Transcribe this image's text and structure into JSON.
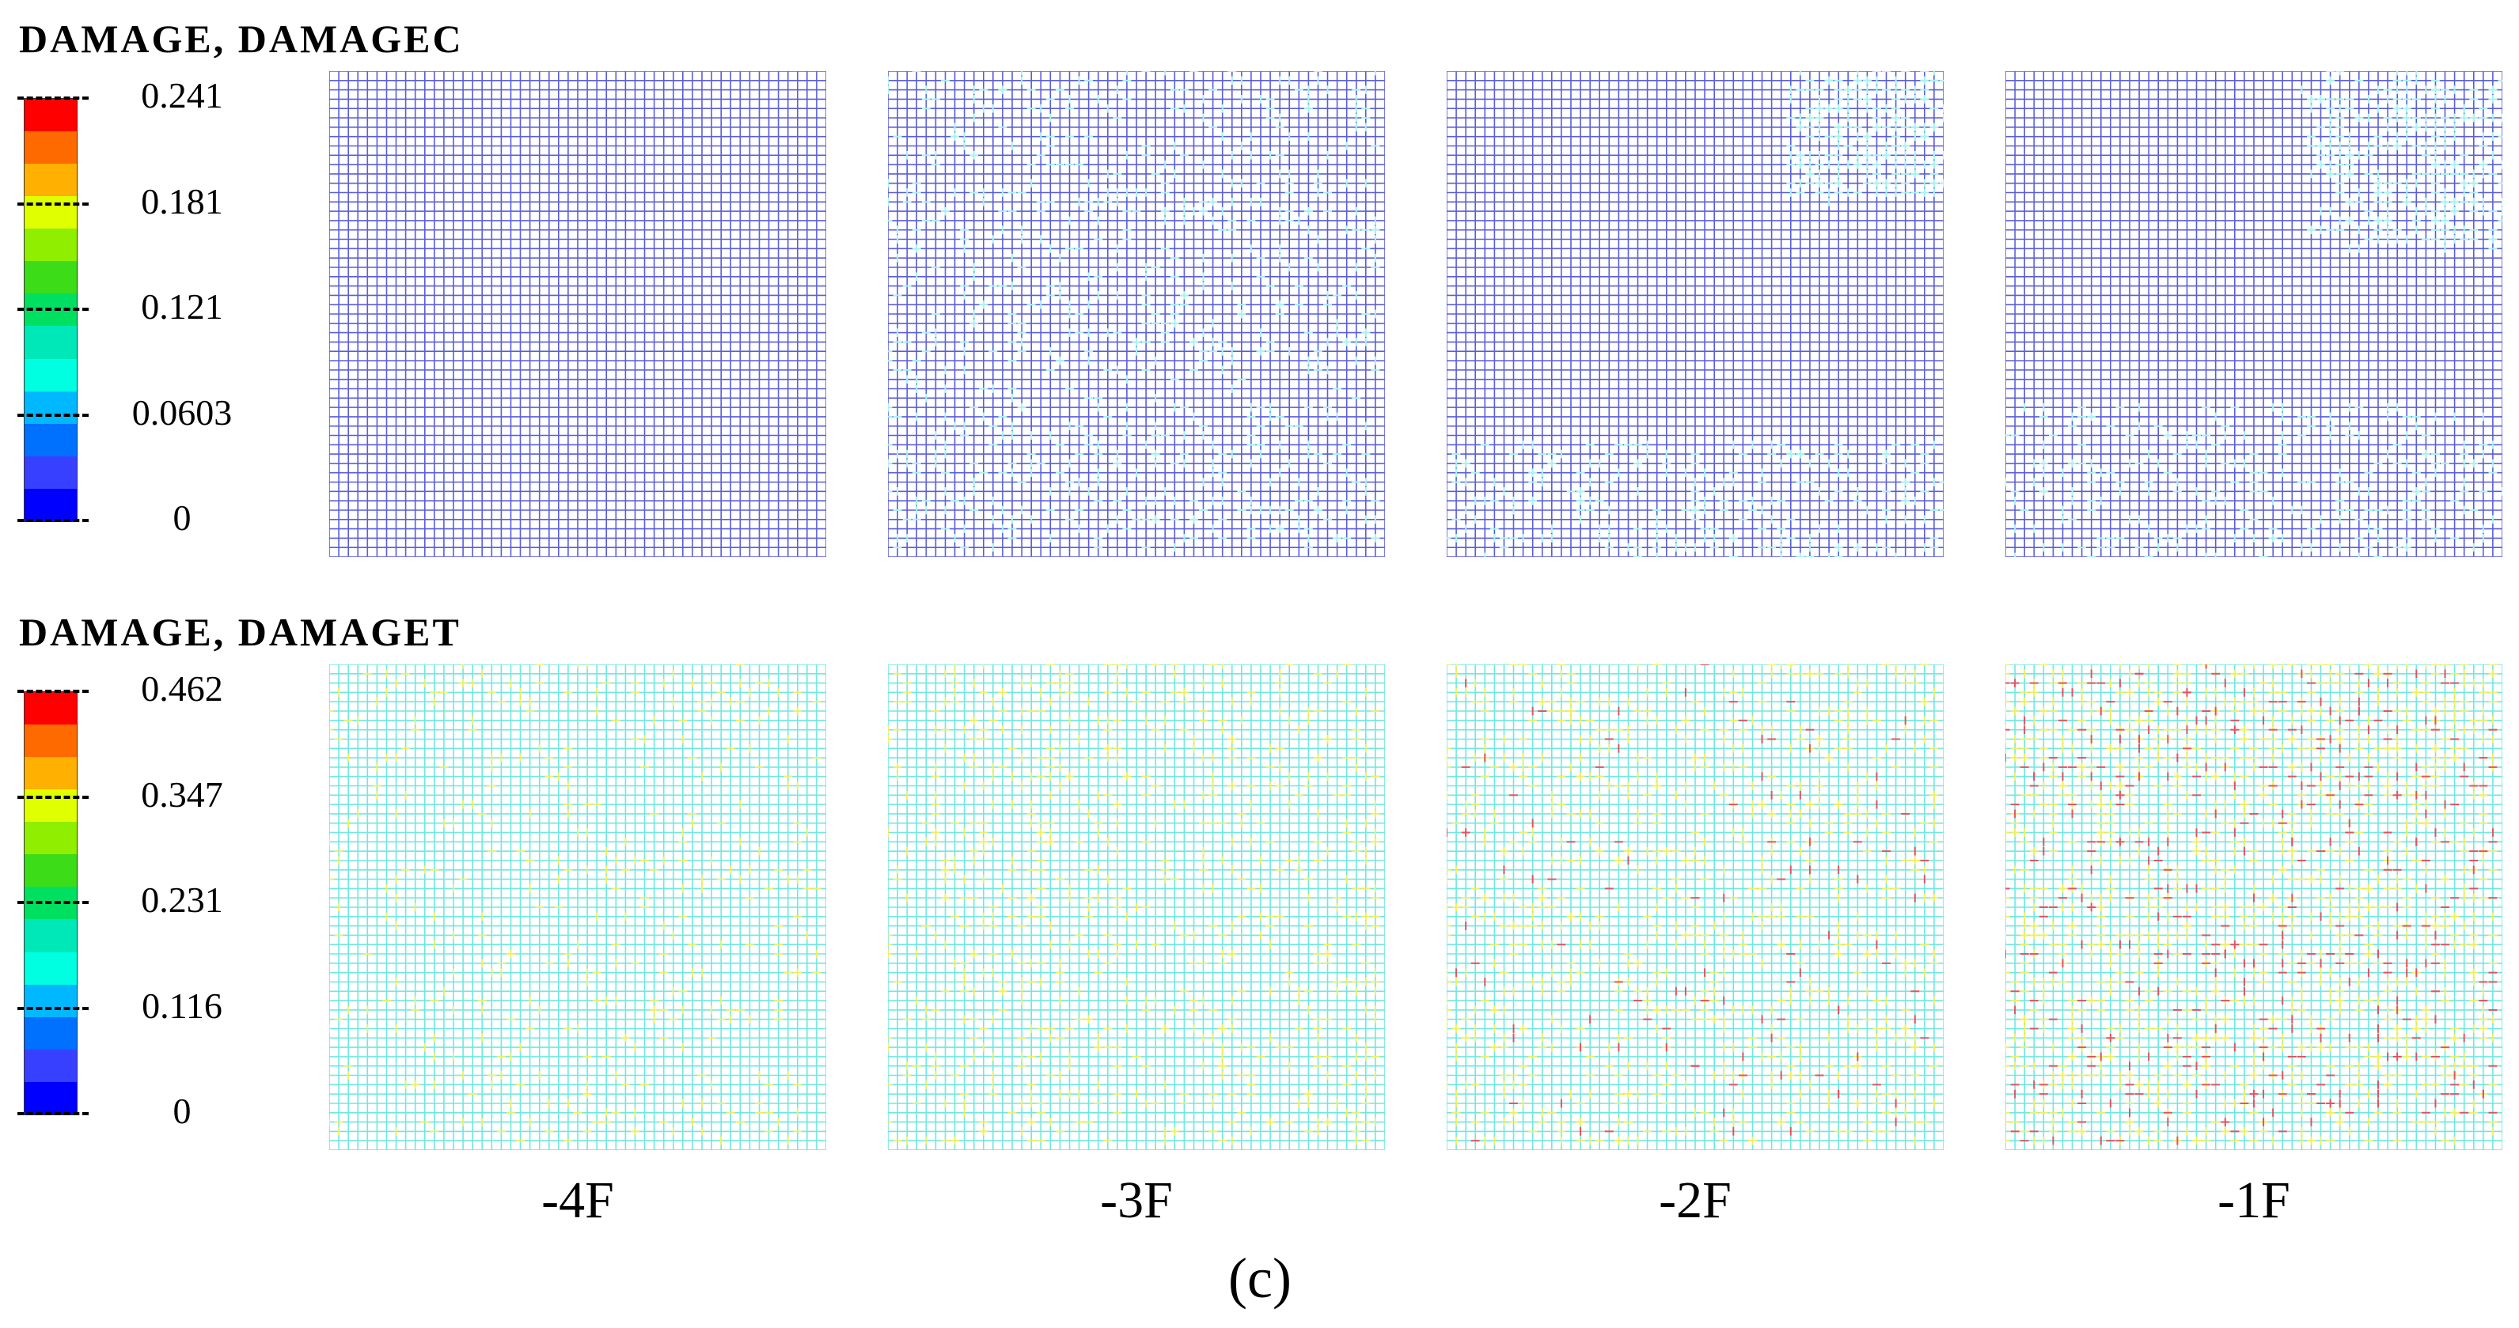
{
  "top": {
    "title": "DAMAGE, DAMAGEC",
    "legend": {
      "ticks": [
        "0.241",
        "0.181",
        "0.121",
        "0.0603",
        "0"
      ],
      "colors": [
        "#ff0000",
        "#ff6a00",
        "#ffb000",
        "#e0ff00",
        "#90ee00",
        "#3cdc18",
        "#00e060",
        "#00e8b8",
        "#00ffe0",
        "#00b8ff",
        "#0070ff",
        "#3840ff",
        "#0000ff"
      ]
    }
  },
  "bottom": {
    "title": "DAMAGE, DAMAGET",
    "legend": {
      "ticks": [
        "0.462",
        "0.347",
        "0.231",
        "0.116",
        "0"
      ],
      "colors": [
        "#ff0000",
        "#ff6a00",
        "#ffb000",
        "#e0ff00",
        "#90ee00",
        "#3cdc18",
        "#00e060",
        "#00e8b8",
        "#00ffe0",
        "#00b8ff",
        "#0070ff",
        "#3840ff",
        "#0000ff"
      ]
    }
  },
  "floors": [
    "-4F",
    "-3F",
    "-2F",
    "-1F"
  ],
  "figure_label": "(c)",
  "colors": {
    "grid_compression": "#5a5ed8",
    "grid_tension": "#6ee8e0",
    "light_cyan": "#a8f4f0",
    "yellow": "#f0f060",
    "red": "#e85060"
  }
}
